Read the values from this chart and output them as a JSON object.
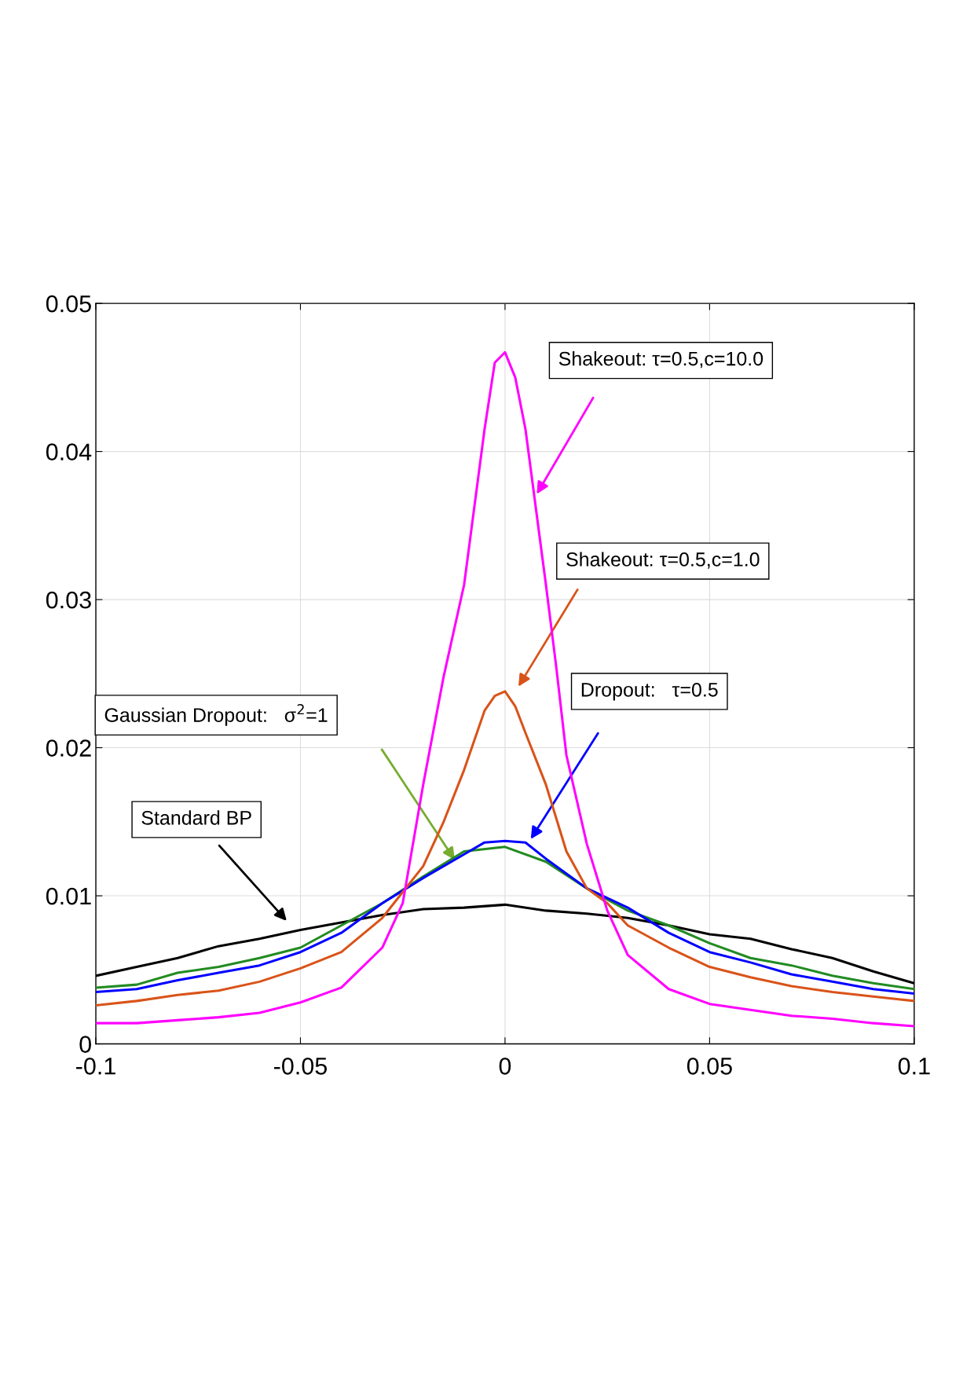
{
  "chart_data": {
    "type": "line",
    "xlim": [
      -0.1,
      0.1
    ],
    "ylim": [
      0,
      0.05
    ],
    "xticks": [
      {
        "value": -0.1,
        "label": "-0.1"
      },
      {
        "value": -0.05,
        "label": "-0.05"
      },
      {
        "value": 0,
        "label": "0"
      },
      {
        "value": 0.05,
        "label": "0.05"
      },
      {
        "value": 0.1,
        "label": "0.1"
      }
    ],
    "yticks": [
      {
        "value": 0,
        "label": "0"
      },
      {
        "value": 0.01,
        "label": "0.01"
      },
      {
        "value": 0.02,
        "label": "0.02"
      },
      {
        "value": 0.03,
        "label": "0.03"
      },
      {
        "value": 0.04,
        "label": "0.04"
      },
      {
        "value": 0.05,
        "label": "0.05"
      }
    ],
    "grid": true,
    "legend": false,
    "marker": "none",
    "line_style": "solid",
    "series": [
      {
        "color": "#ff00ff",
        "x": [
          -0.1,
          -0.09,
          -0.08,
          -0.07,
          -0.06,
          -0.05,
          -0.04,
          -0.03,
          -0.025,
          -0.02,
          -0.015,
          -0.01,
          -0.005,
          -0.0025,
          0,
          0.0025,
          0.005,
          0.01,
          0.0125,
          0.015,
          0.02,
          0.025,
          0.03,
          0.04,
          0.05,
          0.06,
          0.07,
          0.08,
          0.09,
          0.1
        ],
        "values": [
          0.0014,
          0.0014,
          0.0016,
          0.0018,
          0.0021,
          0.0028,
          0.0038,
          0.0065,
          0.0095,
          0.0175,
          0.0248,
          0.031,
          0.0415,
          0.046,
          0.0467,
          0.045,
          0.0415,
          0.031,
          0.0255,
          0.0195,
          0.0135,
          0.009,
          0.006,
          0.0037,
          0.0027,
          0.0023,
          0.0019,
          0.0017,
          0.0014,
          0.0012
        ]
      },
      {
        "color": "#d95319",
        "x": [
          -0.1,
          -0.09,
          -0.08,
          -0.07,
          -0.06,
          -0.05,
          -0.04,
          -0.03,
          -0.02,
          -0.015,
          -0.01,
          -0.005,
          -0.0025,
          0,
          0.0025,
          0.005,
          0.01,
          0.015,
          0.02,
          0.025,
          0.03,
          0.04,
          0.05,
          0.06,
          0.07,
          0.08,
          0.09,
          0.1
        ],
        "values": [
          0.0026,
          0.0029,
          0.0033,
          0.0036,
          0.0042,
          0.0051,
          0.0062,
          0.0085,
          0.012,
          0.015,
          0.0185,
          0.0225,
          0.0235,
          0.0238,
          0.0228,
          0.021,
          0.0175,
          0.013,
          0.0105,
          0.0095,
          0.008,
          0.0065,
          0.0052,
          0.0045,
          0.0039,
          0.0035,
          0.0032,
          0.0029
        ]
      },
      {
        "color": "#0000ff",
        "x": [
          -0.1,
          -0.09,
          -0.08,
          -0.07,
          -0.06,
          -0.05,
          -0.04,
          -0.03,
          -0.02,
          -0.01,
          -0.005,
          0,
          0.005,
          0.01,
          0.02,
          0.03,
          0.04,
          0.05,
          0.06,
          0.07,
          0.08,
          0.09,
          0.1
        ],
        "values": [
          0.0035,
          0.0037,
          0.0043,
          0.0048,
          0.0053,
          0.0062,
          0.0075,
          0.0095,
          0.0112,
          0.0128,
          0.0136,
          0.0137,
          0.0136,
          0.0125,
          0.0105,
          0.0092,
          0.0075,
          0.0062,
          0.0055,
          0.0047,
          0.0042,
          0.0037,
          0.0034
        ]
      },
      {
        "color": "#228b22",
        "x": [
          -0.1,
          -0.09,
          -0.08,
          -0.07,
          -0.06,
          -0.05,
          -0.04,
          -0.03,
          -0.02,
          -0.01,
          0,
          0.01,
          0.02,
          0.03,
          0.04,
          0.05,
          0.06,
          0.07,
          0.08,
          0.09,
          0.1
        ],
        "values": [
          0.0038,
          0.004,
          0.0048,
          0.0052,
          0.0058,
          0.0065,
          0.008,
          0.0095,
          0.0113,
          0.013,
          0.0133,
          0.0123,
          0.0105,
          0.009,
          0.008,
          0.0068,
          0.0058,
          0.0053,
          0.0046,
          0.0041,
          0.0037
        ]
      },
      {
        "color": "#000000",
        "x": [
          -0.1,
          -0.09,
          -0.08,
          -0.07,
          -0.06,
          -0.05,
          -0.04,
          -0.03,
          -0.02,
          -0.01,
          0,
          0.01,
          0.02,
          0.03,
          0.04,
          0.05,
          0.06,
          0.07,
          0.08,
          0.09,
          0.1
        ],
        "values": [
          0.0046,
          0.0052,
          0.0058,
          0.0066,
          0.0071,
          0.0077,
          0.0082,
          0.0087,
          0.0091,
          0.0092,
          0.0094,
          0.009,
          0.0088,
          0.0085,
          0.008,
          0.0074,
          0.0071,
          0.0064,
          0.0058,
          0.0049,
          0.0041
        ]
      }
    ],
    "annotations": [
      "Shakeout: τ=0.5,c=10.0",
      "Shakeout: τ=0.5,c=1.0",
      "Dropout:   τ=0.5",
      "Gaussian Dropout:   σ$^{2}$=1",
      "Standard BP"
    ]
  }
}
